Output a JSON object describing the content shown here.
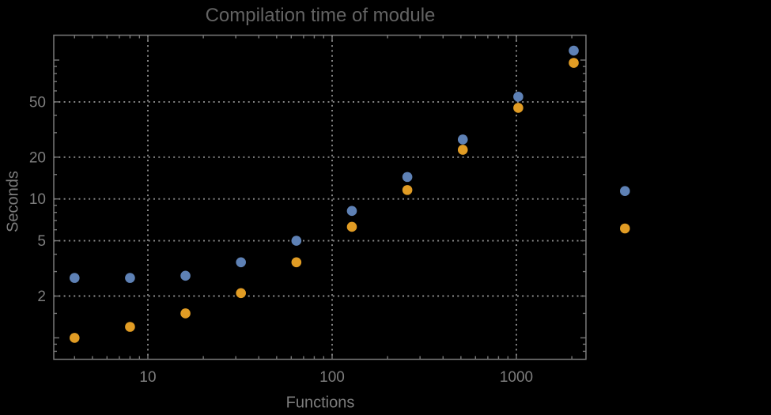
{
  "title": "Compilation time of module",
  "colors": {
    "background": "#000000",
    "title_text": "#636363",
    "axis_text": "#7d7d7d",
    "frame": "#787878",
    "gridline": "#8c8c8c",
    "series1": "#5e81b5",
    "series2": "#e19c24"
  },
  "chart_data": {
    "type": "scatter",
    "title": "Compilation time of module",
    "xlabel": "Functions",
    "ylabel": "Seconds",
    "x_scale": "log",
    "y_scale": "log",
    "grid": "dotted",
    "x_range_approx": [
      3.1,
      2400
    ],
    "y_range_approx": [
      0.7,
      150
    ],
    "x": [
      4,
      8,
      16,
      32,
      64,
      128,
      256,
      512,
      1024,
      2048
    ],
    "series": [
      {
        "name": "series-1-blue",
        "color": "#5e81b5",
        "values": [
          2.7,
          2.7,
          2.8,
          3.5,
          5.0,
          8.2,
          14.4,
          26.8,
          54.5,
          117
        ]
      },
      {
        "name": "series-2-orange",
        "color": "#e19c24",
        "values": [
          1.0,
          1.2,
          1.5,
          2.1,
          3.5,
          6.3,
          11.6,
          22.6,
          45.3,
          95.5
        ]
      }
    ],
    "x_ticks": [
      {
        "value": 10,
        "label": "10"
      },
      {
        "value": 100,
        "label": "100"
      },
      {
        "value": 1000,
        "label": "1000"
      }
    ],
    "y_ticks": [
      {
        "value": 50,
        "label": "50"
      },
      {
        "value": 20,
        "label": "20"
      },
      {
        "value": 10,
        "label": "10"
      },
      {
        "value": 5,
        "label": "5"
      },
      {
        "value": 2,
        "label": "2"
      }
    ],
    "legend_position": "right",
    "legend_markers": [
      {
        "series": "series-1-blue",
        "color": "#5e81b5",
        "label": ""
      },
      {
        "series": "series-2-orange",
        "color": "#e19c24",
        "label": ""
      }
    ]
  }
}
